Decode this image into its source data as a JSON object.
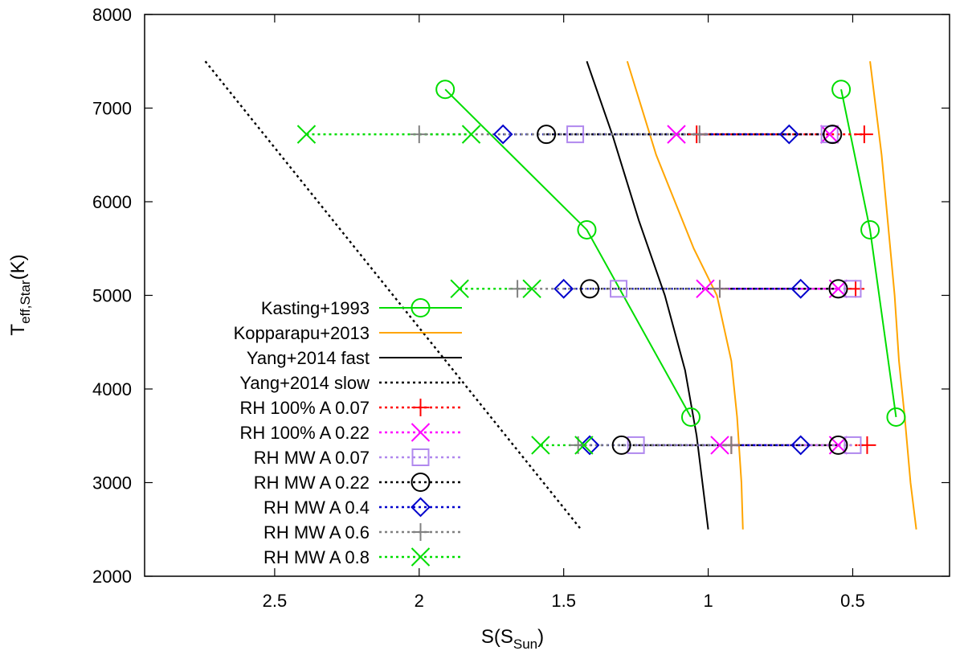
{
  "chart_data": {
    "type": "line",
    "title": "",
    "xlabel": "S(S",
    "xlabel_sub": "Sun",
    "xlabel_end": ")",
    "ylabel": "T",
    "ylabel_sub": "eff,Star",
    "ylabel_end": "(K)",
    "xlim": [
      2.95,
      0.165
    ],
    "ylim": [
      2000,
      8000
    ],
    "x_ticks": [
      {
        "value": 2.5,
        "label": "2.5"
      },
      {
        "value": 2.0,
        "label": "2"
      },
      {
        "value": 1.5,
        "label": "1.5"
      },
      {
        "value": 1.0,
        "label": "1"
      },
      {
        "value": 0.5,
        "label": "0.5"
      }
    ],
    "y_ticks": [
      {
        "value": 2000,
        "label": "2000"
      },
      {
        "value": 3000,
        "label": "3000"
      },
      {
        "value": 4000,
        "label": "4000"
      },
      {
        "value": 5000,
        "label": "5000"
      },
      {
        "value": 6000,
        "label": "6000"
      },
      {
        "value": 7000,
        "label": "7000"
      },
      {
        "value": 8000,
        "label": "8000"
      }
    ],
    "grid": false,
    "legend_position": "bottom-left",
    "series": [
      {
        "name": "Kasting+1993",
        "color": "#00dd00",
        "dash": "solid",
        "marker": "circle",
        "segments": [
          [
            [
              1.91,
              7200
            ],
            [
              1.42,
              5700
            ],
            [
              1.06,
              3700
            ]
          ],
          [
            [
              0.54,
              7200
            ],
            [
              0.44,
              5700
            ],
            [
              0.35,
              3700
            ]
          ]
        ]
      },
      {
        "name": "Kopparapu+2013",
        "color": "#ffa500",
        "dash": "solid",
        "marker": "none",
        "segments": [
          [
            [
              1.28,
              7500
            ],
            [
              1.18,
              6500
            ],
            [
              1.05,
              5500
            ],
            [
              0.97,
              5000
            ],
            [
              0.92,
              4300
            ],
            [
              0.9,
              3700
            ],
            [
              0.885,
              3000
            ],
            [
              0.88,
              2500
            ]
          ],
          [
            [
              0.44,
              7500
            ],
            [
              0.4,
              6500
            ],
            [
              0.37,
              5500
            ],
            [
              0.355,
              5000
            ],
            [
              0.34,
              4300
            ],
            [
              0.32,
              3700
            ],
            [
              0.3,
              3000
            ],
            [
              0.28,
              2500
            ]
          ]
        ]
      },
      {
        "name": "Yang+2014 fast",
        "color": "#000000",
        "dash": "solid",
        "marker": "none",
        "segments": [
          [
            [
              1.42,
              7500
            ],
            [
              1.33,
              6700
            ],
            [
              1.24,
              5800
            ],
            [
              1.15,
              5000
            ],
            [
              1.08,
              4200
            ],
            [
              1.04,
              3500
            ],
            [
              1.02,
              3000
            ],
            [
              1.0,
              2500
            ]
          ]
        ]
      },
      {
        "name": "Yang+2014 slow",
        "color": "#000000",
        "dash": "dotted",
        "marker": "none",
        "segments": [
          [
            [
              2.74,
              7500
            ],
            [
              1.44,
              2500
            ]
          ]
        ]
      },
      {
        "name": "RH 100% A 0.07",
        "color": "#ff0000",
        "dash": "dotted",
        "marker": "plus",
        "segments": [
          [
            [
              1.04,
              6720
            ],
            [
              0.46,
              6720
            ]
          ],
          [
            [
              0.96,
              5070
            ],
            [
              0.49,
              5070
            ]
          ],
          [
            [
              0.92,
              3400
            ],
            [
              0.45,
              3400
            ]
          ]
        ]
      },
      {
        "name": "RH 100% A 0.22",
        "color": "#ff00ff",
        "dash": "dotted",
        "marker": "cross",
        "segments": [
          [
            [
              1.11,
              6720
            ],
            [
              0.58,
              6720
            ]
          ],
          [
            [
              1.01,
              5070
            ],
            [
              0.55,
              5070
            ]
          ],
          [
            [
              0.96,
              3400
            ],
            [
              0.55,
              3400
            ]
          ]
        ]
      },
      {
        "name": "RH MW A 0.07",
        "color": "#b088ee",
        "dash": "dotted",
        "marker": "square",
        "segments": [
          [
            [
              1.46,
              6720
            ],
            [
              0.58,
              6720
            ]
          ],
          [
            [
              1.31,
              5070
            ],
            [
              0.5,
              5070
            ]
          ],
          [
            [
              1.25,
              3400
            ],
            [
              0.5,
              3400
            ]
          ]
        ]
      },
      {
        "name": "RH MW A 0.22",
        "color": "#000000",
        "dash": "dotted",
        "marker": "circle",
        "segments": [
          [
            [
              1.56,
              6720
            ],
            [
              0.57,
              6720
            ]
          ],
          [
            [
              1.41,
              5070
            ],
            [
              0.55,
              5070
            ]
          ],
          [
            [
              1.3,
              3400
            ],
            [
              0.55,
              3400
            ]
          ]
        ]
      },
      {
        "name": "RH MW A 0.4",
        "color": "#0000cc",
        "dash": "dotted",
        "marker": "diamond",
        "segments": [
          [
            [
              1.71,
              6720
            ],
            [
              0.72,
              6720
            ]
          ],
          [
            [
              1.5,
              5070
            ],
            [
              0.68,
              5070
            ]
          ],
          [
            [
              1.41,
              3400
            ],
            [
              0.68,
              3400
            ]
          ]
        ]
      },
      {
        "name": "RH MW A 0.6",
        "color": "#808080",
        "dash": "dotted",
        "marker": "plus",
        "segments": [
          [
            [
              2.0,
              6720
            ],
            [
              1.03,
              6720
            ]
          ],
          [
            [
              1.66,
              5070
            ],
            [
              0.96,
              5070
            ]
          ],
          [
            [
              1.45,
              3400
            ],
            [
              0.92,
              3400
            ]
          ]
        ]
      },
      {
        "name": "RH MW A 0.8",
        "color": "#00dd00",
        "dash": "dotted",
        "marker": "cross",
        "segments": [
          [
            [
              2.39,
              6720
            ],
            [
              1.82,
              6720
            ]
          ],
          [
            [
              1.86,
              5070
            ],
            [
              1.61,
              5070
            ]
          ],
          [
            [
              1.58,
              3400
            ],
            [
              1.43,
              3400
            ]
          ]
        ]
      }
    ]
  }
}
